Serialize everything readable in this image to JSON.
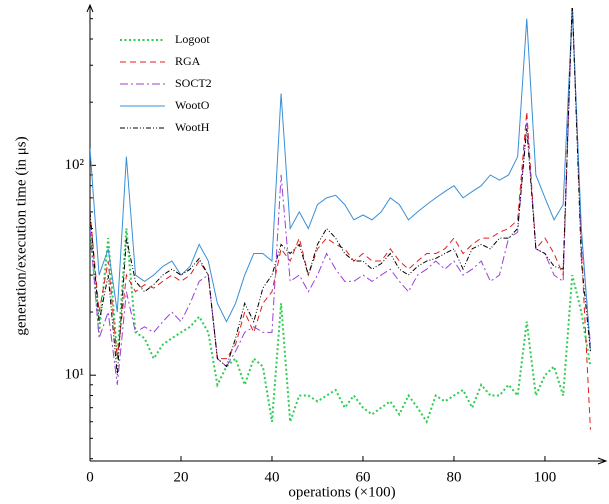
{
  "chart_data": {
    "type": "line",
    "xlabel": "operations (×100)",
    "ylabel": "generation/execution time (in μs)",
    "ylog": true,
    "xlim": [
      0,
      111
    ],
    "ylim": [
      3.9,
      550
    ],
    "xticks": [
      0,
      20,
      40,
      60,
      80,
      100
    ],
    "yticks": [
      {
        "value": 10,
        "label": "10¹"
      },
      {
        "value": 100,
        "label": "10²"
      }
    ],
    "yminorticks": [
      4,
      5,
      6,
      7,
      8,
      9,
      20,
      30,
      40,
      50,
      60,
      70,
      80,
      90,
      200,
      300,
      400,
      500
    ],
    "x": [
      0,
      2,
      4,
      6,
      8,
      10,
      12,
      14,
      16,
      18,
      20,
      22,
      24,
      26,
      28,
      30,
      32,
      34,
      36,
      38,
      40,
      42,
      44,
      46,
      48,
      50,
      52,
      54,
      56,
      58,
      60,
      62,
      64,
      66,
      68,
      70,
      72,
      74,
      76,
      78,
      80,
      82,
      84,
      86,
      88,
      90,
      92,
      94,
      96,
      98,
      100,
      102,
      104,
      106,
      108,
      110
    ],
    "series": [
      {
        "name": "Logoot",
        "color": "#2ecc52",
        "dash": "2,2.5",
        "width": 2,
        "values": [
          50,
          16,
          45,
          12,
          50,
          16,
          15,
          12,
          14,
          15,
          16,
          17,
          19,
          16,
          9,
          11,
          12,
          9,
          12,
          11,
          6,
          22,
          6,
          8,
          8,
          7.5,
          8,
          8.5,
          7,
          8,
          7,
          6.5,
          7,
          7.5,
          6.5,
          8,
          7,
          6,
          8,
          7.5,
          8,
          8.5,
          7,
          9,
          8,
          8,
          9,
          8,
          18,
          8,
          10,
          11,
          8,
          30,
          20,
          11
        ]
      },
      {
        "name": "RGA",
        "color": "#e0201c",
        "dash": "6,4",
        "width": 1,
        "values": [
          60,
          20,
          35,
          12,
          30,
          25,
          27,
          26,
          28,
          30,
          28,
          30,
          35,
          30,
          12,
          12,
          14,
          20,
          16,
          22,
          25,
          40,
          35,
          45,
          30,
          40,
          45,
          42,
          40,
          35,
          38,
          35,
          35,
          40,
          35,
          32,
          35,
          38,
          38,
          40,
          45,
          38,
          42,
          45,
          45,
          48,
          50,
          55,
          180,
          40,
          45,
          38,
          30,
          600,
          40,
          5.5
        ]
      },
      {
        "name": "SOCT2",
        "color": "#9b40d8",
        "dash": "8,3,2,3",
        "width": 1,
        "values": [
          50,
          15,
          20,
          9,
          25,
          16,
          17,
          16,
          18,
          20,
          18,
          22,
          28,
          30,
          12,
          11,
          13,
          16,
          17,
          16,
          16,
          90,
          28,
          30,
          25,
          30,
          38,
          32,
          28,
          28,
          30,
          28,
          30,
          32,
          28,
          25,
          30,
          32,
          35,
          32,
          35,
          30,
          32,
          35,
          28,
          30,
          45,
          48,
          160,
          40,
          38,
          30,
          28,
          600,
          45,
          14
        ]
      },
      {
        "name": "WootO",
        "color": "#3a8fd6",
        "dash": "none",
        "width": 1,
        "values": [
          120,
          30,
          40,
          20,
          110,
          30,
          28,
          30,
          33,
          35,
          30,
          33,
          42,
          35,
          22,
          18,
          22,
          30,
          38,
          38,
          35,
          220,
          50,
          60,
          50,
          65,
          70,
          72,
          65,
          55,
          58,
          55,
          60,
          70,
          65,
          55,
          60,
          65,
          70,
          75,
          80,
          70,
          75,
          80,
          90,
          85,
          90,
          110,
          500,
          90,
          70,
          55,
          65,
          550,
          50,
          13
        ]
      },
      {
        "name": "WootH",
        "color": "#000000",
        "dash": "5,2,1,2,1,2",
        "width": 1,
        "values": [
          60,
          18,
          30,
          10,
          45,
          28,
          25,
          27,
          30,
          32,
          30,
          32,
          36,
          30,
          12,
          11,
          15,
          22,
          18,
          26,
          30,
          42,
          38,
          42,
          30,
          42,
          50,
          45,
          38,
          35,
          35,
          32,
          34,
          38,
          32,
          30,
          33,
          35,
          36,
          38,
          40,
          32,
          40,
          42,
          40,
          45,
          45,
          50,
          150,
          40,
          38,
          33,
          32,
          600,
          35,
          13
        ]
      }
    ]
  }
}
